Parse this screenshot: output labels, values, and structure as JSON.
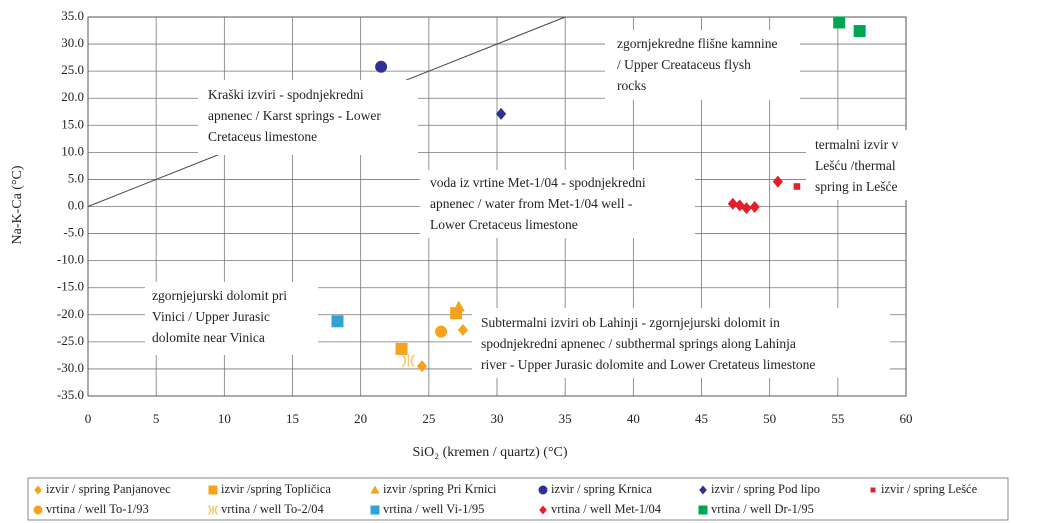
{
  "chart_data": {
    "type": "scatter",
    "xlabel": "SiO₂ (kremen / quartz) (°C)",
    "ylabel": "Na-K-Ca (°C)",
    "xlim": [
      0,
      60
    ],
    "xticks": [
      0,
      5,
      10,
      15,
      20,
      25,
      30,
      35,
      40,
      45,
      50,
      55,
      60
    ],
    "ylim": [
      -35,
      35
    ],
    "yticks": [
      {
        "value": 35,
        "label": "35.0"
      },
      {
        "value": 30,
        "label": "30.0"
      },
      {
        "value": 25,
        "label": "25.0"
      },
      {
        "value": 20,
        "label": "20.0"
      },
      {
        "value": 15,
        "label": "15.0"
      },
      {
        "value": 10,
        "label": "10.0"
      },
      {
        "value": 5,
        "label": "5.0"
      },
      {
        "value": 0,
        "label": "0.0"
      },
      {
        "value": -5,
        "label": "-5.0"
      },
      {
        "value": -10,
        "label": "-10.0"
      },
      {
        "value": -15,
        "label": "-15.0"
      },
      {
        "value": -20,
        "label": "-20.0"
      },
      {
        "value": -25,
        "label": "-25.0"
      },
      {
        "value": -30,
        "label": "-30.0"
      },
      {
        "value": -35,
        "label": "-35.0"
      }
    ],
    "grid": true,
    "reference_line": {
      "x": [
        0,
        35
      ],
      "y": [
        0,
        35
      ]
    },
    "series": [
      {
        "name": "izvir / spring Panjanovec",
        "color": "#f5a31c",
        "marker": "diamond",
        "x": [
          27.5,
          24.5
        ],
        "values": [
          -22.8,
          -29.5
        ]
      },
      {
        "name": "izvir /spring Topličica",
        "color": "#f5a31c",
        "marker": "square",
        "x": [
          23.0,
          27.0
        ],
        "values": [
          -26.3,
          -19.7
        ]
      },
      {
        "name": "izvir /spring Pri Krnici",
        "color": "#f5a31c",
        "marker": "triangle",
        "x": [
          27.2
        ],
        "values": [
          -18.5
        ]
      },
      {
        "name": "izvir / spring Krnica",
        "color": "#2e3192",
        "marker": "circle",
        "x": [
          21.5
        ],
        "values": [
          25.8
        ]
      },
      {
        "name": "izvir / spring Pod lipo",
        "color": "#2e3192",
        "marker": "diamond",
        "x": [
          30.3
        ],
        "values": [
          17.1
        ]
      },
      {
        "name": "izvir / spring Lešće",
        "color": "#e41f2b",
        "marker": "smallsquare",
        "x": [
          52.0
        ],
        "values": [
          3.7
        ]
      },
      {
        "name": "vrtina / well To-1/93",
        "color": "#f5a31c",
        "marker": "circle",
        "x": [
          25.9
        ],
        "values": [
          -23.1
        ]
      },
      {
        "name": "vrtina / well To-2/04",
        "color": "#fbc56c",
        "marker": "star",
        "x": [
          23.5
        ],
        "values": [
          -28.5
        ]
      },
      {
        "name": "vrtina / well Vi-1/95",
        "color": "#2fa3d3",
        "marker": "square",
        "x": [
          18.3
        ],
        "values": [
          -21.2
        ]
      },
      {
        "name": "vrtina / well Met-1/04",
        "color": "#e41f2b",
        "marker": "diamond",
        "x": [
          47.3,
          47.8,
          48.3,
          48.9,
          50.6
        ],
        "values": [
          0.5,
          0.2,
          -0.3,
          -0.1,
          4.6
        ]
      },
      {
        "name": "vrtina / well Dr-1/95",
        "color": "#00a651",
        "marker": "square",
        "x": [
          55.1,
          56.6
        ],
        "values": [
          34.0,
          32.4
        ]
      }
    ],
    "annotations": [
      {
        "text": [
          "zgornjekredne flišne kamnine",
          "/ Upper Creataceus flysh",
          "rocks"
        ]
      },
      {
        "text": [
          "Kraški izviri - spodnjekredni",
          "apnenec / Karst springs - Lower",
          "Cretaceus limestone"
        ]
      },
      {
        "text": [
          "termalni izvir v",
          "Lešću /thermal",
          "spring in Lešće"
        ]
      },
      {
        "text": [
          "voda iz vrtine Met-1/04 - spodnjekredni",
          "apnenec / water from Met-1/04 well -",
          "Lower Cretaceus limestone"
        ]
      },
      {
        "text": [
          "zgornjejurski dolomit pri",
          "Vinici / Upper Jurasic",
          "dolomite near Vinica"
        ]
      },
      {
        "text": [
          "Subtermalni izviri ob Lahinji - zgornjejurski dolomit in",
          "spodnjekredni apnenec / subthermal springs along Lahinja",
          "river - Upper Jurasic dolomite and Lower Cretateus limestone"
        ]
      }
    ]
  }
}
